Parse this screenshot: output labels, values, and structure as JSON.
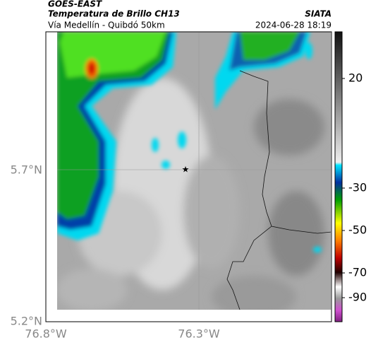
{
  "header": {
    "satellite": "GOES-EAST",
    "product": "Temperatura de Brillo CH13",
    "region": "Vía Medellín - Quibdó 50km",
    "source": "SIATA",
    "timestamp": "2024-06-28 18:19"
  },
  "map": {
    "lat_labels": [
      "5.7°N",
      "5.2°N"
    ],
    "lon_labels": [
      "76.8°W",
      "76.3°W"
    ]
  },
  "colorbar": {
    "tick_labels": [
      "20",
      "-30",
      "-50",
      "-70",
      "-90"
    ]
  }
}
